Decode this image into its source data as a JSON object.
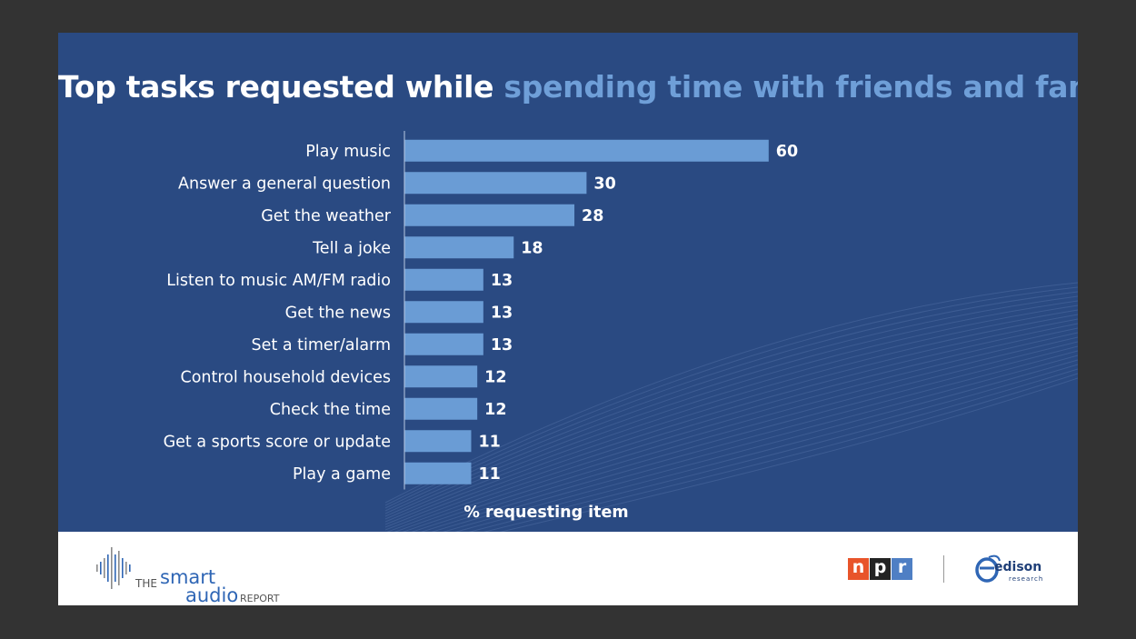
{
  "title": {
    "prefix": "Top tasks requested while ",
    "highlight": "spending time with friends and family",
    "suffix": ":"
  },
  "chart_data": {
    "type": "bar",
    "orientation": "horizontal",
    "categories": [
      "Play music",
      "Answer a general question",
      "Get the weather",
      "Tell a joke",
      "Listen to music AM/FM radio",
      "Get the news",
      "Set a timer/alarm",
      "Control household devices",
      "Check the time",
      "Get a sports score or update",
      "Play a game"
    ],
    "values": [
      60,
      30,
      28,
      18,
      13,
      13,
      13,
      12,
      12,
      11,
      11
    ],
    "xlabel": "% requesting item",
    "xlim": [
      0,
      100
    ],
    "bar_color": "#6a9cd5",
    "data_labels": true,
    "grid": false
  },
  "footer": {
    "logo_the": "THE",
    "logo_smart": "smart",
    "logo_audio": "audio",
    "logo_report": "REPORT",
    "npr_letters": [
      "n",
      "p",
      "r"
    ],
    "edison_name": "edison",
    "edison_sub": "research"
  },
  "colors": {
    "panel": "#2a4a82",
    "highlight": "#6f9fd8",
    "npr_n": "#e8542a",
    "npr_p": "#232323",
    "npr_r": "#4f7fc4"
  }
}
